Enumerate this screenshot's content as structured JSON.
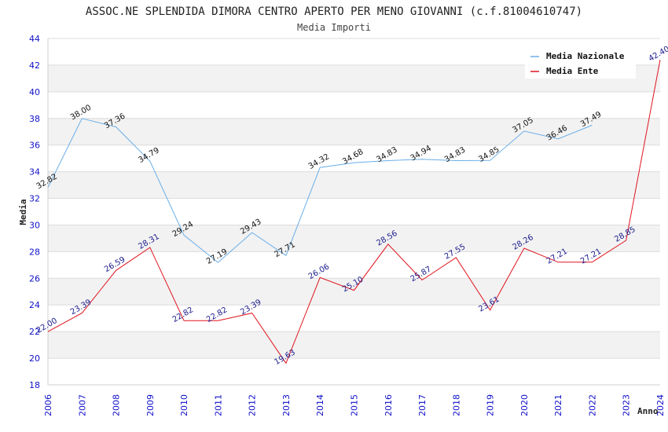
{
  "chart_data": {
    "type": "line",
    "title": "ASSOC.NE SPLENDIDA DIMORA CENTRO APERTO PER MENO GIOVANNI (c.f.81004610747)",
    "subtitle": "Media Importi",
    "xlabel": "Anno",
    "ylabel": "Media",
    "ylim": [
      18,
      44
    ],
    "yticks": [
      "18",
      "20",
      "22",
      "24",
      "26",
      "28",
      "30",
      "32",
      "34",
      "36",
      "38",
      "40",
      "42",
      "44"
    ],
    "categories": [
      "2006",
      "2007",
      "2008",
      "2009",
      "2010",
      "2011",
      "2012",
      "2013",
      "2014",
      "2015",
      "2016",
      "2017",
      "2018",
      "2019",
      "2020",
      "2021",
      "2022",
      "2023",
      "2024"
    ],
    "legend_position": "top-right",
    "series": [
      {
        "name": "Media Nazionale",
        "color": "#6aaee8",
        "label_color": "#111111",
        "values": [
          32.82,
          38.0,
          37.36,
          34.79,
          29.24,
          27.19,
          29.43,
          27.71,
          34.32,
          34.68,
          34.83,
          34.94,
          34.83,
          34.85,
          37.05,
          36.46,
          37.49,
          null,
          null
        ],
        "labels": [
          "32.82",
          "38.00",
          "37.36",
          "34.79",
          "29.24",
          "27.19",
          "29.43",
          "27.71",
          "34.32",
          "34.68",
          "34.83",
          "34.94",
          "34.83",
          "34.85",
          "37.05",
          "36.46",
          "37.49",
          null,
          null
        ]
      },
      {
        "name": "Media Ente",
        "color": "#e0141e",
        "label_color": "#1a1a8c",
        "values": [
          22.0,
          23.39,
          26.59,
          28.31,
          22.82,
          22.82,
          23.39,
          19.63,
          26.06,
          25.1,
          28.56,
          25.87,
          27.55,
          23.61,
          28.26,
          27.21,
          27.21,
          28.85,
          42.4
        ],
        "labels": [
          "22.00",
          "23.39",
          "26.59",
          "28.31",
          "22.82",
          "22.82",
          "23.39",
          "19.63",
          "26.06",
          "25.10",
          "28.56",
          "25.87",
          "27.55",
          "23.61",
          "28.26",
          "27.21",
          "27.21",
          "28.85",
          "42.40"
        ]
      }
    ]
  }
}
